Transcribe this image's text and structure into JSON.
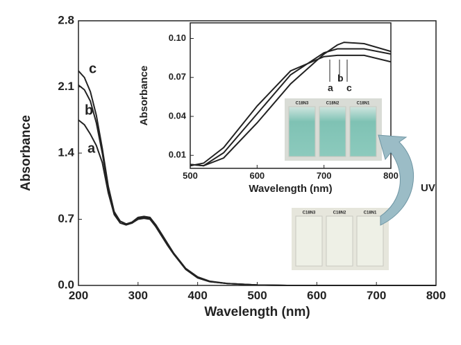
{
  "chart_data": [
    {
      "type": "line",
      "xlabel": "Wavelength (nm)",
      "ylabel": "Absorbance",
      "x": [
        200,
        210,
        220,
        230,
        240,
        250,
        260,
        270,
        280,
        290,
        300,
        310,
        320,
        330,
        340,
        350,
        360,
        370,
        380,
        400,
        420,
        450,
        500,
        550,
        600,
        700,
        800
      ],
      "series": [
        {
          "name": "a",
          "color": "#222222",
          "values": [
            1.75,
            1.7,
            1.6,
            1.48,
            1.3,
            0.98,
            0.75,
            0.66,
            0.64,
            0.66,
            0.71,
            0.72,
            0.71,
            0.62,
            0.52,
            0.42,
            0.33,
            0.25,
            0.17,
            0.08,
            0.04,
            0.02,
            0.005,
            0,
            0,
            0,
            0
          ]
        },
        {
          "name": "b",
          "color": "#222222",
          "values": [
            2.12,
            2.07,
            1.95,
            1.72,
            1.4,
            1.02,
            0.77,
            0.68,
            0.65,
            0.67,
            0.72,
            0.73,
            0.72,
            0.64,
            0.54,
            0.44,
            0.34,
            0.26,
            0.18,
            0.09,
            0.045,
            0.02,
            0.005,
            0,
            0,
            0,
            0
          ]
        },
        {
          "name": "c",
          "color": "#222222",
          "values": [
            2.27,
            2.2,
            2.05,
            1.8,
            1.45,
            1.05,
            0.78,
            0.68,
            0.65,
            0.66,
            0.7,
            0.71,
            0.7,
            0.62,
            0.52,
            0.42,
            0.33,
            0.25,
            0.17,
            0.08,
            0.04,
            0.02,
            0.005,
            0,
            0,
            0,
            0
          ]
        }
      ],
      "xlim": [
        200,
        800
      ],
      "xticks": [
        200,
        300,
        400,
        500,
        600,
        700,
        800
      ],
      "ylim": [
        0,
        2.8
      ],
      "yticks": [
        {
          "value": 0,
          "label": "0.0"
        },
        0.7,
        1.4,
        2.1,
        2.8
      ]
    },
    {
      "type": "line",
      "xlabel": "Wavelength (nm)",
      "ylabel": "Absorbance",
      "x": [
        500,
        520,
        550,
        600,
        650,
        700,
        720,
        730,
        760,
        800
      ],
      "series": [
        {
          "name": "a",
          "color": "#222222",
          "values": [
            0.002,
            0.004,
            0.016,
            0.048,
            0.075,
            0.086,
            0.087,
            0.087,
            0.087,
            0.082
          ]
        },
        {
          "name": "b",
          "color": "#222222",
          "values": [
            0.003,
            0.002,
            0.012,
            0.042,
            0.072,
            0.089,
            0.092,
            0.092,
            0.092,
            0.088
          ]
        },
        {
          "name": "c",
          "color": "#222222",
          "values": [
            0.003,
            0.002,
            0.008,
            0.035,
            0.065,
            0.088,
            0.095,
            0.097,
            0.096,
            0.09
          ]
        }
      ],
      "xlim": [
        500,
        800
      ],
      "xticks": [
        500,
        600,
        700,
        800
      ],
      "ylim": [
        0,
        0.112
      ],
      "yticks": [
        0.01,
        0.04,
        0.07,
        {
          "value": 0.1,
          "label": "0.10"
        }
      ],
      "annotations": [
        "UV",
        "C18N3",
        "C18N2",
        "C18N1"
      ]
    }
  ]
}
